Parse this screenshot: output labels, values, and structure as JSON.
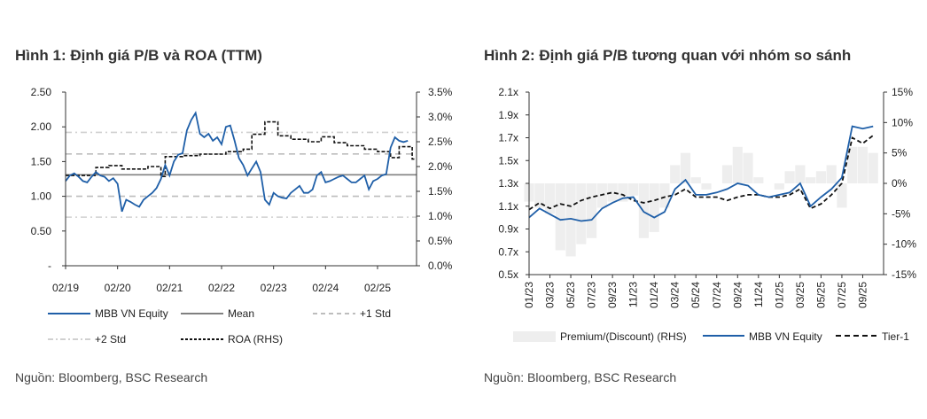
{
  "figure1": {
    "title": "Hình 1: Định giá P/B và ROA (TTM)",
    "source": "Nguồn: Bloomberg, BSC Research"
  },
  "figure2": {
    "title": "Hình 2: Định giá P/B tương quan với nhóm so sánh",
    "source": "Nguồn: Bloomberg, BSC Research"
  },
  "colors": {
    "blue": "#1f5fa8",
    "mean": "#808080",
    "std": "#bdbdbd",
    "black": "#111111",
    "premium": "#eeeeee"
  },
  "chart_data": [
    {
      "type": "line",
      "title": "Hình 1: Định giá P/B và ROA (TTM)",
      "x_unit": "months since 02/2019",
      "xlim": [
        0,
        81
      ],
      "x_ticks": [
        {
          "v": 0,
          "label": "02/19"
        },
        {
          "v": 12,
          "label": "02/20"
        },
        {
          "v": 24,
          "label": "02/21"
        },
        {
          "v": 36,
          "label": "02/22"
        },
        {
          "v": 48,
          "label": "02/23"
        },
        {
          "v": 60,
          "label": "02/24"
        },
        {
          "v": 72,
          "label": "02/25"
        }
      ],
      "ylim": [
        0,
        2.5
      ],
      "y_ticks": [
        {
          "v": 0,
          "label": "-"
        },
        {
          "v": 0.5,
          "label": "0.50"
        },
        {
          "v": 1,
          "label": "1.00"
        },
        {
          "v": 1.5,
          "label": "1.50"
        },
        {
          "v": 2,
          "label": "2.00"
        },
        {
          "v": 2.5,
          "label": "2.50"
        }
      ],
      "y2lim": [
        0,
        3.5
      ],
      "y2_ticks": [
        {
          "v": 0,
          "label": "0.0%"
        },
        {
          "v": 0.5,
          "label": "0.5%"
        },
        {
          "v": 1,
          "label": "1.0%"
        },
        {
          "v": 1.5,
          "label": "1.5%"
        },
        {
          "v": 2,
          "label": "2.0%"
        },
        {
          "v": 2.5,
          "label": "2.5%"
        },
        {
          "v": 3,
          "label": "3.0%"
        },
        {
          "v": 3.5,
          "label": "3.5%"
        }
      ],
      "legend": [
        "MBB VN Equity",
        "Mean",
        "+1 Std",
        "+2 Std",
        "ROA (RHS)"
      ],
      "legend_position": "bottom",
      "mbb": [
        1.22,
        1.3,
        1.33,
        1.28,
        1.22,
        1.2,
        1.28,
        1.35,
        1.3,
        1.28,
        1.22,
        1.26,
        1.18,
        0.78,
        0.95,
        0.92,
        0.88,
        0.85,
        0.95,
        1.0,
        1.05,
        1.12,
        1.25,
        1.45,
        1.3,
        1.5,
        1.6,
        1.62,
        1.95,
        2.1,
        2.2,
        1.9,
        1.85,
        1.9,
        1.8,
        1.85,
        1.75,
        2.0,
        2.02,
        1.8,
        1.55,
        1.45,
        1.3,
        1.4,
        1.5,
        1.35,
        0.95,
        0.88,
        1.05,
        1.0,
        0.98,
        0.97,
        1.05,
        1.1,
        1.15,
        1.05,
        1.05,
        1.1,
        1.3,
        1.35,
        1.2,
        1.22,
        1.25,
        1.28,
        1.3,
        1.25,
        1.2,
        1.2,
        1.25,
        1.3,
        1.1,
        1.22,
        1.25,
        1.3,
        1.32,
        1.7,
        1.85,
        1.8,
        1.78,
        1.8
      ],
      "mean": 1.31,
      "std1": [
        1.0,
        1.61
      ],
      "std2": [
        0.7,
        1.92
      ],
      "roa_steps": [
        [
          0,
          1.82
        ],
        [
          7,
          1.98
        ],
        [
          10,
          2.02
        ],
        [
          13,
          1.95
        ],
        [
          19,
          2.0
        ],
        [
          22,
          1.8
        ],
        [
          23,
          2.2
        ],
        [
          27,
          2.22
        ],
        [
          31,
          2.25
        ],
        [
          37,
          2.3
        ],
        [
          41,
          2.35
        ],
        [
          43,
          2.65
        ],
        [
          46,
          2.9
        ],
        [
          49,
          2.62
        ],
        [
          52,
          2.55
        ],
        [
          56,
          2.5
        ],
        [
          59,
          2.6
        ],
        [
          62,
          2.48
        ],
        [
          65,
          2.42
        ],
        [
          69,
          2.35
        ],
        [
          72,
          2.3
        ],
        [
          75,
          2.18
        ],
        [
          77,
          2.4
        ],
        [
          80,
          2.15
        ],
        [
          81,
          2.15
        ]
      ]
    },
    {
      "type": "line",
      "title": "Hình 2: Định giá P/B tương quan với nhóm so sánh",
      "x_unit": "months since 01/2023",
      "xlim": [
        0,
        34
      ],
      "x_ticks": [
        {
          "v": 0,
          "label": "01/23"
        },
        {
          "v": 2,
          "label": "03/23"
        },
        {
          "v": 4,
          "label": "05/23"
        },
        {
          "v": 6,
          "label": "07/23"
        },
        {
          "v": 8,
          "label": "09/23"
        },
        {
          "v": 10,
          "label": "11/23"
        },
        {
          "v": 12,
          "label": "01/24"
        },
        {
          "v": 14,
          "label": "03/24"
        },
        {
          "v": 16,
          "label": "05/24"
        },
        {
          "v": 18,
          "label": "07/24"
        },
        {
          "v": 20,
          "label": "09/24"
        },
        {
          "v": 22,
          "label": "11/24"
        },
        {
          "v": 24,
          "label": "01/25"
        },
        {
          "v": 26,
          "label": "03/25"
        },
        {
          "v": 28,
          "label": "05/25"
        },
        {
          "v": 30,
          "label": "07/25"
        },
        {
          "v": 32,
          "label": "09/25"
        }
      ],
      "ylim": [
        0.5,
        2.1
      ],
      "y_ticks": [
        {
          "v": 0.5,
          "label": "0.5x"
        },
        {
          "v": 0.7,
          "label": "0.7x"
        },
        {
          "v": 0.9,
          "label": "0.9x"
        },
        {
          "v": 1.1,
          "label": "1.1x"
        },
        {
          "v": 1.3,
          "label": "1.3x"
        },
        {
          "v": 1.5,
          "label": "1.5x"
        },
        {
          "v": 1.7,
          "label": "1.7x"
        },
        {
          "v": 1.9,
          "label": "1.9x"
        },
        {
          "v": 2.1,
          "label": "2.1x"
        }
      ],
      "y2lim": [
        -15,
        15
      ],
      "y2_ticks": [
        {
          "v": -15,
          "label": "-15%"
        },
        {
          "v": -10,
          "label": "-10%"
        },
        {
          "v": -5,
          "label": "-5%"
        },
        {
          "v": 0,
          "label": "0%"
        },
        {
          "v": 5,
          "label": "5%"
        },
        {
          "v": 10,
          "label": "10%"
        },
        {
          "v": 15,
          "label": "15%"
        }
      ],
      "legend": [
        "Premium/(Discount) (RHS)",
        "MBB VN Equity",
        "Tier-1"
      ],
      "legend_position": "bottom",
      "mbb": [
        1.0,
        1.08,
        1.03,
        0.98,
        0.99,
        0.97,
        0.98,
        1.08,
        1.13,
        1.17,
        1.18,
        1.05,
        1.0,
        1.05,
        1.25,
        1.33,
        1.2,
        1.2,
        1.22,
        1.25,
        1.3,
        1.28,
        1.2,
        1.18,
        1.2,
        1.22,
        1.3,
        1.1,
        1.18,
        1.25,
        1.35,
        1.8,
        1.78,
        1.8
      ],
      "tier1": [
        1.07,
        1.13,
        1.08,
        1.12,
        1.1,
        1.15,
        1.18,
        1.2,
        1.22,
        1.2,
        1.15,
        1.13,
        1.15,
        1.18,
        1.2,
        1.25,
        1.18,
        1.18,
        1.18,
        1.15,
        1.18,
        1.2,
        1.2,
        1.18,
        1.18,
        1.2,
        1.25,
        1.08,
        1.12,
        1.2,
        1.3,
        1.7,
        1.65,
        1.72
      ],
      "premium": [
        -3,
        -4,
        -5,
        -11,
        -12,
        -10,
        -9,
        -4,
        -3,
        -3,
        -2,
        -9,
        -8,
        -4,
        3,
        5,
        1,
        -1,
        0,
        3,
        6,
        5,
        1,
        0,
        -1,
        2,
        3,
        1,
        2,
        3,
        -4,
        6,
        6,
        5
      ]
    }
  ]
}
